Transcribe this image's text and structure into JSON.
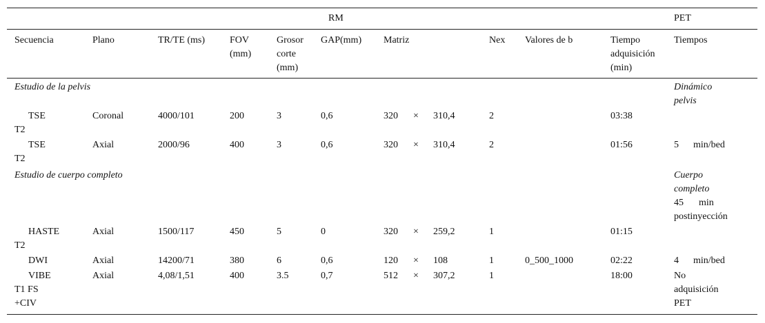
{
  "group_headers": {
    "rm": "RM",
    "pet": "PET"
  },
  "columns": {
    "secuencia": "Secuencia",
    "plano": "Plano",
    "tr_te": "TR/TE (ms)",
    "fov_1": "FOV",
    "fov_2": "(mm)",
    "grosor_1": "Grosor",
    "grosor_2": "corte",
    "grosor_3": "(mm)",
    "gap": "GAP(mm)",
    "matriz": "Matriz",
    "nex": "Nex",
    "valores_b": "Valores de b",
    "tiempo_1": "Tiempo",
    "tiempo_2": "adquisición",
    "tiempo_3": "(min)",
    "tiempos": "Tiempos"
  },
  "sections": {
    "pelvis": {
      "title": "Estudio de la pelvis",
      "pet_1": "Dinámico",
      "pet_2": "pelvis"
    },
    "cuerpo": {
      "title": "Estudio de cuerpo completo",
      "pet_1": "Cuerpo",
      "pet_2": "completo",
      "pet_3": "45",
      "pet_4": "min",
      "pet_5": "postinyección"
    }
  },
  "rows": {
    "r1": {
      "seq_1": "TSE",
      "seq_2": "T2",
      "plano": "Coronal",
      "trte": "4000/101",
      "fov": "200",
      "grosor": "3",
      "gap": "0,6",
      "m1": "320",
      "mx": "×",
      "m2": "310,4",
      "nex": "2",
      "b": "",
      "tiempo": "03:38"
    },
    "r2": {
      "seq_1": "TSE",
      "seq_2": "T2",
      "plano": "Axial",
      "trte": "2000/96",
      "fov": "400",
      "grosor": "3",
      "gap": "0,6",
      "m1": "320",
      "mx": "×",
      "m2": "310,4",
      "nex": "2",
      "b": "",
      "tiempo": "01:56",
      "pet_1": "5",
      "pet_2": "min/bed"
    },
    "r3": {
      "seq_1": "HASTE",
      "seq_2": "T2",
      "plano": "Axial",
      "trte": "1500/117",
      "fov": "450",
      "grosor": "5",
      "gap": "0",
      "m1": "320",
      "mx": "×",
      "m2": "259,2",
      "nex": "1",
      "b": "",
      "tiempo": "01:15"
    },
    "r4": {
      "seq_1": "DWI",
      "plano": "Axial",
      "trte": "14200/71",
      "fov": "380",
      "grosor": "6",
      "gap": "0,6",
      "m1": "120",
      "mx": "×",
      "m2": "108",
      "nex": "1",
      "b": "0_500_1000",
      "tiempo": "02:22",
      "pet_1": "4",
      "pet_2": "min/bed"
    },
    "r5": {
      "seq_1": "VIBE",
      "seq_2": "T1 FS",
      "seq_3": "+CIV",
      "plano": "Axial",
      "trte": "4,08/1,51",
      "fov": "400",
      "grosor": "3.5",
      "gap": "0,7",
      "m1": "512",
      "mx": "×",
      "m2": "307,2",
      "nex": "1",
      "b": "",
      "tiempo": "18:00",
      "pet_1": "No",
      "pet_2": "adquisición",
      "pet_3": "PET"
    }
  }
}
